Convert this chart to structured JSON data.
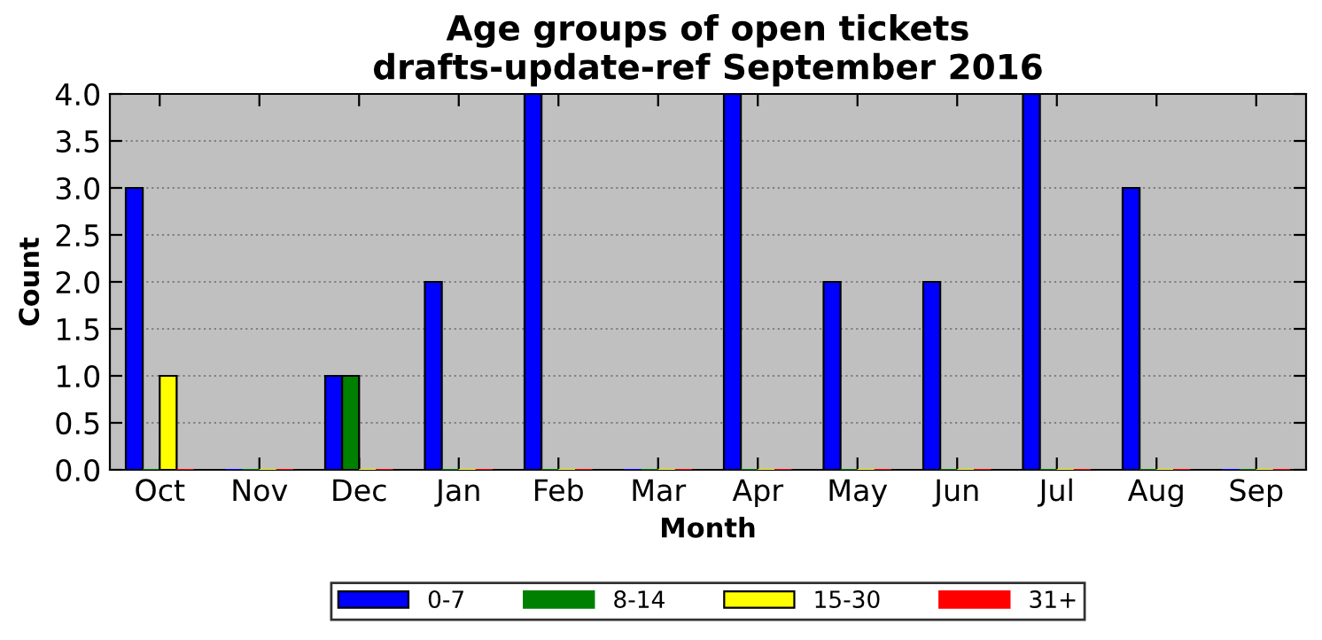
{
  "chart_data": {
    "type": "bar",
    "title": "Age groups of open tickets\ndrafts-update-ref September 2016",
    "xlabel": "Month",
    "ylabel": "Count",
    "categories": [
      "Oct",
      "Nov",
      "Dec",
      "Jan",
      "Feb",
      "Mar",
      "Apr",
      "May",
      "Jun",
      "Jul",
      "Aug",
      "Sep"
    ],
    "series": [
      {
        "name": "0-7",
        "color": "#0000ff",
        "values": [
          3,
          0,
          1,
          2,
          4,
          0,
          4,
          2,
          2,
          4,
          3,
          0
        ]
      },
      {
        "name": "8-14",
        "color": "#008000",
        "values": [
          0,
          0,
          1,
          0,
          0,
          0,
          0,
          0,
          0,
          0,
          0,
          0
        ]
      },
      {
        "name": "15-30",
        "color": "#ffff00",
        "values": [
          1,
          0,
          0,
          0,
          0,
          0,
          0,
          0,
          0,
          0,
          0,
          0
        ]
      },
      {
        "name": "31+",
        "color": "#ff0000",
        "values": [
          0,
          0,
          0,
          0,
          0,
          0,
          0,
          0,
          0,
          0,
          0,
          0
        ]
      }
    ],
    "ylim": [
      0,
      4
    ],
    "yticks": [
      {
        "value": 0,
        "label": "0.0"
      },
      {
        "value": 0.5,
        "label": "0.5"
      },
      {
        "value": 1,
        "label": "1.0"
      },
      {
        "value": 1.5,
        "label": "1.5"
      },
      {
        "value": 2,
        "label": "2.0"
      },
      {
        "value": 2.5,
        "label": "2.5"
      },
      {
        "value": 3,
        "label": "3.0"
      },
      {
        "value": 3.5,
        "label": "3.5"
      },
      {
        "value": 4,
        "label": "4.0"
      }
    ],
    "grid": "y",
    "legend": "bottom"
  }
}
